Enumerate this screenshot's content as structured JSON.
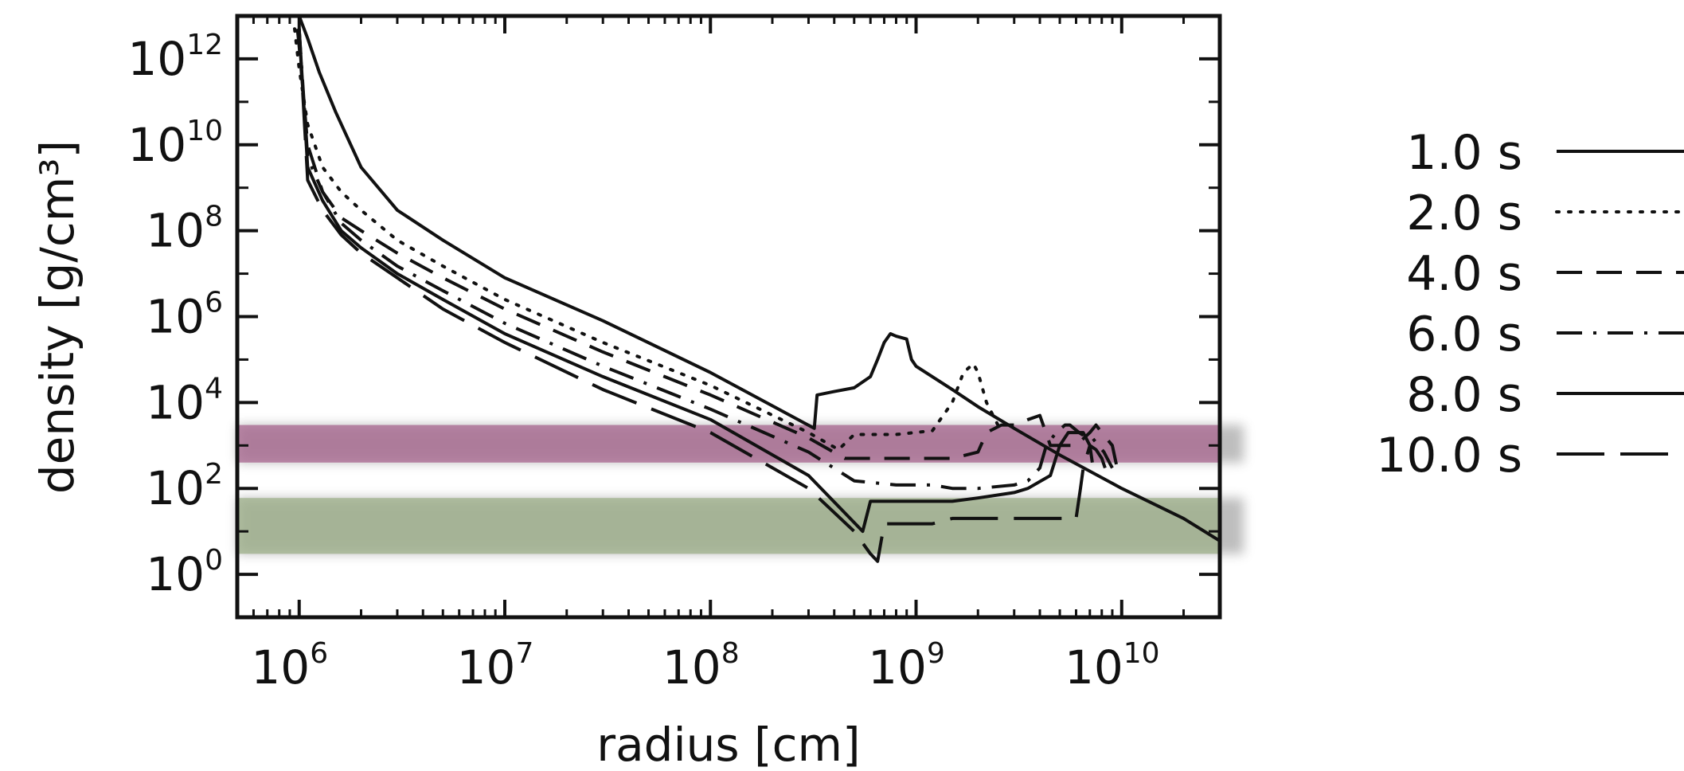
{
  "chart_data": {
    "type": "line",
    "xlabel": "radius [cm]",
    "ylabel": "density [g/cm³]",
    "x_scale": "log",
    "y_scale": "log",
    "xlim": [
      500000,
      30000000000
    ],
    "ylim": [
      0.1,
      10000000000000
    ],
    "x_ticks": [
      {
        "value": 1000000,
        "base": "10",
        "exp": "6"
      },
      {
        "value": 10000000,
        "base": "10",
        "exp": "7"
      },
      {
        "value": 100000000,
        "base": "10",
        "exp": "8"
      },
      {
        "value": 1000000000,
        "base": "10",
        "exp": "9"
      },
      {
        "value": 10000000000,
        "base": "10",
        "exp": "10"
      }
    ],
    "y_ticks": [
      {
        "value": 1,
        "base": "10",
        "exp": "0"
      },
      {
        "value": 100,
        "base": "10",
        "exp": "2"
      },
      {
        "value": 10000,
        "base": "10",
        "exp": "4"
      },
      {
        "value": 1000000,
        "base": "10",
        "exp": "6"
      },
      {
        "value": 100000000,
        "base": "10",
        "exp": "8"
      },
      {
        "value": 10000000000,
        "base": "10",
        "exp": "10"
      },
      {
        "value": 1000000000000,
        "base": "10",
        "exp": "12"
      }
    ],
    "bands": [
      {
        "name": "upper band",
        "y_range": [
          400,
          3000
        ],
        "color": "#a8668f"
      },
      {
        "name": "lower band",
        "y_range": [
          3,
          60
        ],
        "color": "#9db089"
      }
    ],
    "legend_position": "right",
    "series": [
      {
        "name": "1.0 s",
        "style": "solid",
        "x": [
          900000,
          1000000,
          1100000,
          1250000,
          1500000,
          2000000,
          3000000,
          5000000,
          10000000,
          30000000,
          100000000,
          320000000,
          330000000,
          400000000,
          500000000,
          600000000,
          650000000,
          700000000,
          750000000,
          800000000,
          900000000,
          950000000,
          1000000000,
          1500000000,
          2000000000,
          3000000000,
          5000000000,
          10000000000,
          20000000000,
          30000000000
        ],
        "y": [
          25000000000000,
          10000000000000,
          3000000000000,
          500000000000,
          60000000000,
          3000000000,
          300000000,
          60000000,
          8000000,
          800000,
          50000,
          2500,
          15000,
          18000,
          22000,
          40000,
          100000,
          250000,
          400000,
          350000,
          300000,
          100000,
          70000,
          20000,
          8000,
          2500,
          600,
          100,
          20,
          6
        ]
      },
      {
        "name": "2.0 s",
        "style": "dotted",
        "x": [
          950000,
          1000000,
          1100000,
          1300000,
          1600000,
          2000000,
          3000000,
          5000000,
          10000000,
          30000000,
          100000000,
          300000000,
          420000000,
          500000000,
          800000000,
          1200000000,
          1500000000,
          1700000000,
          1900000000,
          2000000000,
          2200000000,
          2500000000
        ],
        "y": [
          5000000000000,
          600000000000,
          30000000000,
          3000000000,
          800000000,
          300000000,
          60000000,
          15000000,
          2500000,
          250000,
          25000,
          2000,
          800,
          1800,
          1800,
          2200,
          10000,
          50000,
          80000,
          50000,
          10000,
          3000
        ]
      },
      {
        "name": "4.0 s",
        "style": "dashed",
        "x": [
          980000,
          1000000,
          1100000,
          1300000,
          1600000,
          2000000,
          3000000,
          5000000,
          10000000,
          30000000,
          100000000,
          300000000,
          450000000,
          600000000,
          1000000000,
          1500000000,
          2000000000,
          2200000000,
          2600000000,
          3000000000,
          3500000000,
          4000000000,
          4500000000,
          5000000000,
          5500000000,
          6000000000,
          7000000000,
          7500000000,
          8000000000,
          9000000000,
          9500000000
        ],
        "y": [
          5000000000000,
          2000000000000,
          10000000000,
          800000000,
          200000000,
          100000000,
          30000000,
          8000000,
          1500000,
          150000,
          15000,
          1500,
          500,
          500,
          500,
          500,
          700,
          2000,
          3000,
          3000,
          4000,
          5000,
          1000,
          1000,
          1000,
          1000,
          2000,
          3000,
          2000,
          1000,
          300
        ]
      },
      {
        "name": "6.0 s",
        "style": "dashdot",
        "x": [
          1000000,
          1100000,
          1300000,
          1600000,
          2000000,
          3000000,
          5000000,
          10000000,
          30000000,
          100000000,
          300000000,
          500000000,
          800000000,
          1200000000,
          1500000000,
          2000000000,
          3000000000,
          3500000000,
          4000000000,
          4300000000,
          4800000000,
          5300000000,
          5600000000,
          6200000000,
          6800000000,
          7200000000,
          7700000000,
          8200000000,
          8500000000,
          9000000000
        ],
        "y": [
          5000000000000,
          5000000000,
          800000000,
          150000000,
          60000000,
          15000000,
          4000000,
          700000,
          70000,
          7000,
          700,
          150,
          120,
          120,
          100,
          100,
          120,
          150,
          300,
          1000,
          2000,
          3000,
          3000,
          2000,
          1500,
          1500,
          1000,
          700,
          500,
          300
        ]
      },
      {
        "name": "8.0 s",
        "style": "solid",
        "x": [
          1000000,
          1100000,
          1300000,
          1600000,
          2000000,
          3000000,
          5000000,
          10000000,
          30000000,
          100000000,
          300000000,
          550000000,
          600000000,
          620000000,
          800000000,
          1200000000,
          1500000000,
          2000000000,
          3000000000,
          3500000000,
          4500000000,
          5000000000,
          5500000000,
          6000000000,
          6500000000,
          7000000000,
          7200000000
        ],
        "y": [
          5000000000000,
          3000000000,
          500000000,
          100000000,
          40000000,
          10000000,
          2500000,
          400000,
          40000,
          4000,
          200,
          10,
          50,
          50,
          50,
          50,
          50,
          60,
          80,
          100,
          200,
          1000,
          2000,
          2000,
          2000,
          1000,
          400
        ]
      },
      {
        "name": "10.0 s",
        "style": "longdash",
        "x": [
          1000000,
          1100000,
          1300000,
          1600000,
          2000000,
          3000000,
          5000000,
          10000000,
          30000000,
          100000000,
          300000000,
          500000000,
          600000000,
          650000000,
          700000000,
          800000000,
          1200000000,
          1500000000,
          2000000000,
          3000000000,
          4000000000,
          4500000000,
          5500000000,
          6000000000,
          6300000000,
          6500000000,
          7000000000,
          7500000000,
          8000000000,
          8300000000
        ],
        "y": [
          5000000000000,
          1500000000,
          300000000,
          80000000,
          30000000,
          8000000,
          1500000,
          250000,
          20000,
          2000,
          100,
          10,
          3,
          2,
          15,
          15,
          15,
          20,
          20,
          20,
          20,
          20,
          20,
          20,
          100,
          300,
          1000,
          800,
          500,
          300
        ]
      }
    ]
  }
}
